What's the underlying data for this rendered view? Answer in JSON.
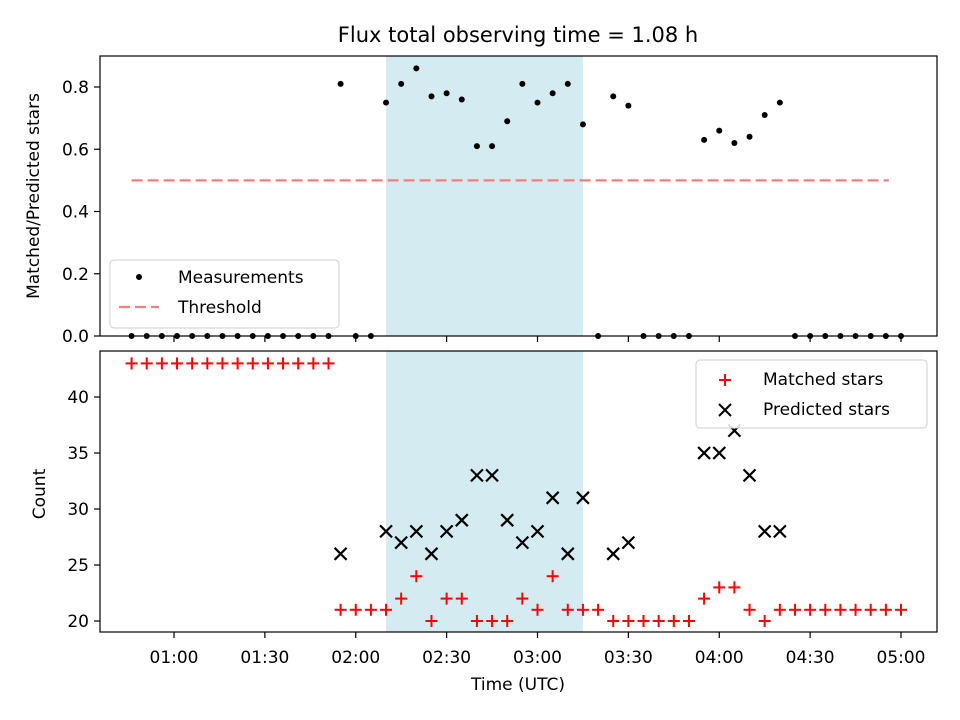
{
  "chart_data": [
    {
      "type": "scatter",
      "title": "Flux total observing time = 1.08 h",
      "ylabel": "Matched/Predicted stars",
      "ylim": [
        0,
        0.9
      ],
      "yticks": [
        "0.0",
        "0.2",
        "0.4",
        "0.6",
        "0.8"
      ],
      "shaded_region": {
        "start": "02:10",
        "end": "03:15",
        "color": "#d4ebf1"
      },
      "legend_position": "lower-left",
      "legend": [
        "Measurements",
        "Threshold"
      ],
      "threshold": {
        "name": "Threshold",
        "value": 0.5,
        "start": "00:46",
        "end": "04:56",
        "color": "#f08080"
      },
      "series": [
        {
          "name": "Measurements",
          "color": "#000000",
          "points": [
            [
              "00:46",
              0
            ],
            [
              "00:51",
              0
            ],
            [
              "00:56",
              0
            ],
            [
              "01:01",
              0
            ],
            [
              "01:06",
              0
            ],
            [
              "01:11",
              0
            ],
            [
              "01:16",
              0
            ],
            [
              "01:21",
              0
            ],
            [
              "01:26",
              0
            ],
            [
              "01:31",
              0
            ],
            [
              "01:36",
              0
            ],
            [
              "01:41",
              0
            ],
            [
              "01:46",
              0
            ],
            [
              "01:51",
              0
            ],
            [
              "01:55",
              0.81
            ],
            [
              "02:00",
              0
            ],
            [
              "02:05",
              0
            ],
            [
              "02:10",
              0.75
            ],
            [
              "02:15",
              0.81
            ],
            [
              "02:20",
              0.86
            ],
            [
              "02:25",
              0.77
            ],
            [
              "02:30",
              0.78
            ],
            [
              "02:35",
              0.76
            ],
            [
              "02:40",
              0.61
            ],
            [
              "02:45",
              0.61
            ],
            [
              "02:50",
              0.69
            ],
            [
              "02:55",
              0.81
            ],
            [
              "03:00",
              0.75
            ],
            [
              "03:05",
              0.78
            ],
            [
              "03:10",
              0.81
            ],
            [
              "03:15",
              0.68
            ],
            [
              "03:20",
              0
            ],
            [
              "03:25",
              0.77
            ],
            [
              "03:30",
              0.74
            ],
            [
              "03:35",
              0
            ],
            [
              "03:40",
              0
            ],
            [
              "03:45",
              0
            ],
            [
              "03:50",
              0
            ],
            [
              "03:55",
              0.63
            ],
            [
              "04:00",
              0.66
            ],
            [
              "04:05",
              0.62
            ],
            [
              "04:10",
              0.64
            ],
            [
              "04:15",
              0.71
            ],
            [
              "04:20",
              0.75
            ],
            [
              "04:25",
              0
            ],
            [
              "04:30",
              0
            ],
            [
              "04:35",
              0
            ],
            [
              "04:40",
              0
            ],
            [
              "04:45",
              0
            ],
            [
              "04:50",
              0
            ],
            [
              "04:55",
              0
            ],
            [
              "05:00",
              0
            ]
          ]
        }
      ]
    },
    {
      "type": "scatter",
      "xlabel": "Time (UTC)",
      "ylabel": "Count",
      "ylim": [
        19,
        44.5
      ],
      "yticks": [
        "20",
        "25",
        "30",
        "35",
        "40"
      ],
      "xticks": [
        "01:00",
        "01:30",
        "02:00",
        "02:30",
        "03:00",
        "03:30",
        "04:00",
        "04:30",
        "05:00"
      ],
      "shaded_region": {
        "start": "02:10",
        "end": "03:15",
        "color": "#d4ebf1"
      },
      "legend_position": "upper-right",
      "legend": [
        "Matched stars",
        "Predicted stars"
      ],
      "series": [
        {
          "name": "Matched stars",
          "marker": "plus",
          "color": "#ff0000",
          "points": [
            [
              "00:46",
              43
            ],
            [
              "00:51",
              43
            ],
            [
              "00:56",
              43
            ],
            [
              "01:01",
              43
            ],
            [
              "01:06",
              43
            ],
            [
              "01:11",
              43
            ],
            [
              "01:16",
              43
            ],
            [
              "01:21",
              43
            ],
            [
              "01:26",
              43
            ],
            [
              "01:31",
              43
            ],
            [
              "01:36",
              43
            ],
            [
              "01:41",
              43
            ],
            [
              "01:46",
              43
            ],
            [
              "01:51",
              43
            ],
            [
              "01:55",
              21
            ],
            [
              "02:00",
              21
            ],
            [
              "02:05",
              21
            ],
            [
              "02:10",
              21
            ],
            [
              "02:15",
              22
            ],
            [
              "02:20",
              24
            ],
            [
              "02:25",
              20
            ],
            [
              "02:30",
              22
            ],
            [
              "02:35",
              22
            ],
            [
              "02:40",
              20
            ],
            [
              "02:45",
              20
            ],
            [
              "02:50",
              20
            ],
            [
              "02:55",
              22
            ],
            [
              "03:00",
              21
            ],
            [
              "03:05",
              24
            ],
            [
              "03:10",
              21
            ],
            [
              "03:15",
              21
            ],
            [
              "03:20",
              21
            ],
            [
              "03:25",
              20
            ],
            [
              "03:30",
              20
            ],
            [
              "03:35",
              20
            ],
            [
              "03:40",
              20
            ],
            [
              "03:45",
              20
            ],
            [
              "03:50",
              20
            ],
            [
              "03:55",
              22
            ],
            [
              "04:00",
              23
            ],
            [
              "04:05",
              23
            ],
            [
              "04:10",
              21
            ],
            [
              "04:15",
              20
            ],
            [
              "04:20",
              21
            ],
            [
              "04:25",
              21
            ],
            [
              "04:30",
              21
            ],
            [
              "04:35",
              21
            ],
            [
              "04:40",
              21
            ],
            [
              "04:45",
              21
            ],
            [
              "04:50",
              21
            ],
            [
              "04:55",
              21
            ],
            [
              "05:00",
              21
            ]
          ]
        },
        {
          "name": "Predicted stars",
          "marker": "x",
          "color": "#000000",
          "points": [
            [
              "01:55",
              26
            ],
            [
              "02:10",
              28
            ],
            [
              "02:15",
              27
            ],
            [
              "02:20",
              28
            ],
            [
              "02:25",
              26
            ],
            [
              "02:30",
              28
            ],
            [
              "02:35",
              29
            ],
            [
              "02:40",
              33
            ],
            [
              "02:45",
              33
            ],
            [
              "02:50",
              29
            ],
            [
              "02:55",
              27
            ],
            [
              "03:00",
              28
            ],
            [
              "03:05",
              31
            ],
            [
              "03:10",
              26
            ],
            [
              "03:15",
              31
            ],
            [
              "03:25",
              26
            ],
            [
              "03:30",
              27
            ],
            [
              "03:55",
              35
            ],
            [
              "04:00",
              35
            ],
            [
              "04:05",
              37
            ],
            [
              "04:10",
              33
            ],
            [
              "04:15",
              28
            ],
            [
              "04:20",
              28
            ]
          ]
        }
      ]
    }
  ]
}
